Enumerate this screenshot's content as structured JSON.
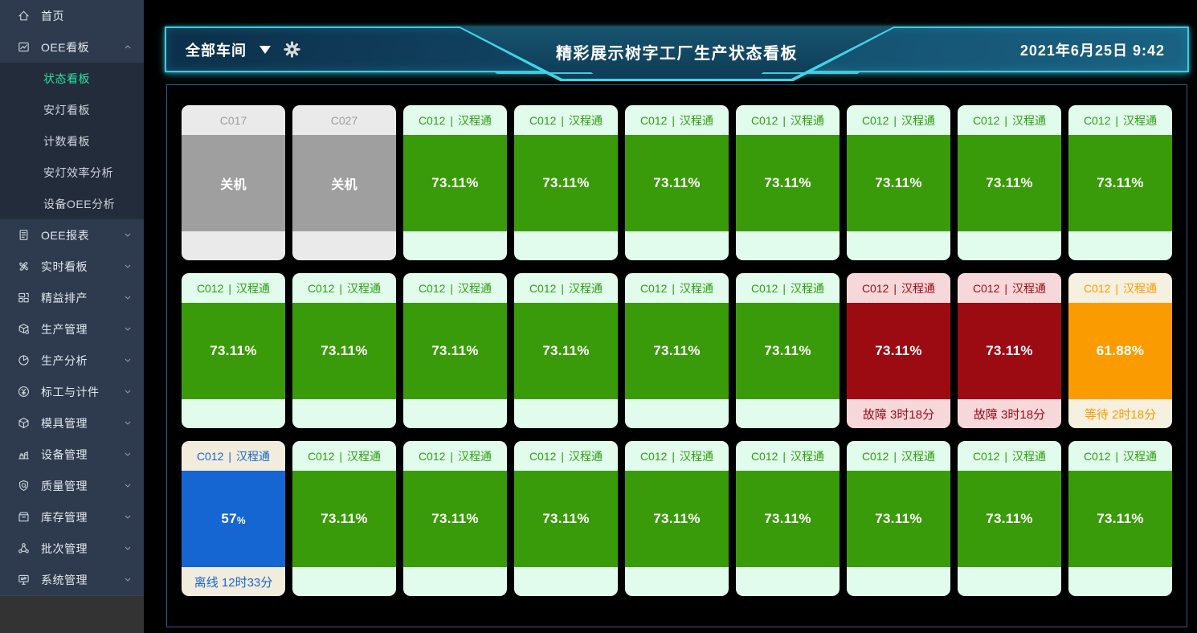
{
  "colors": {
    "accent_cyan": "#3fc9de",
    "sidebar_bg": "#2e3a4d",
    "submenu_bg": "#222c3b",
    "active_menu_green": "#2ee0a2",
    "state_run": "#3a9b0a",
    "state_fault": "#9c0a12",
    "state_wait": "#fb9b02",
    "state_offline": "#1566d2",
    "state_off": "#9f9f9f"
  },
  "sidebar": {
    "items": [
      {
        "label": "首页",
        "icon": "home-icon",
        "chevron": "none"
      },
      {
        "label": "OEE看板",
        "icon": "kanban-icon",
        "chevron": "up",
        "children": [
          {
            "label": "状态看板",
            "active": true
          },
          {
            "label": "安灯看板",
            "active": false
          },
          {
            "label": "计数看板",
            "active": false
          },
          {
            "label": "安灯效率分析",
            "active": false
          },
          {
            "label": "设备OEE分析",
            "active": false
          }
        ]
      },
      {
        "label": "OEE报表",
        "icon": "report-icon",
        "chevron": "down"
      },
      {
        "label": "实时看板",
        "icon": "fan-icon",
        "chevron": "down"
      },
      {
        "label": "精益排产",
        "icon": "schedule-icon",
        "chevron": "down"
      },
      {
        "label": "生产管理",
        "icon": "production-icon",
        "chevron": "down"
      },
      {
        "label": "生产分析",
        "icon": "pie-icon",
        "chevron": "down"
      },
      {
        "label": "标工与计件",
        "icon": "yen-icon",
        "chevron": "down"
      },
      {
        "label": "模具管理",
        "icon": "mold-icon",
        "chevron": "down"
      },
      {
        "label": "设备管理",
        "icon": "equipment-icon",
        "chevron": "down"
      },
      {
        "label": "质量管理",
        "icon": "quality-icon",
        "chevron": "down"
      },
      {
        "label": "库存管理",
        "icon": "inventory-icon",
        "chevron": "down"
      },
      {
        "label": "批次管理",
        "icon": "batch-icon",
        "chevron": "down"
      },
      {
        "label": "系统管理",
        "icon": "system-icon",
        "chevron": "down"
      }
    ]
  },
  "header": {
    "workshop_selector": {
      "label": "全部车间"
    },
    "title": "精彩展示树字工厂生产状态看板",
    "datetime": "2021年6月25日 9:42"
  },
  "board": {
    "divider": "|",
    "cards": [
      {
        "machine": "C017",
        "product": "",
        "state": "off",
        "body": "关机",
        "suffix": "",
        "footer": ""
      },
      {
        "machine": "C027",
        "product": "",
        "state": "off",
        "body": "关机",
        "suffix": "",
        "footer": ""
      },
      {
        "machine": "C012",
        "product": "汉程通",
        "state": "run",
        "body": "73.11%",
        "suffix": "",
        "footer": ""
      },
      {
        "machine": "C012",
        "product": "汉程通",
        "state": "run",
        "body": "73.11%",
        "suffix": "",
        "footer": ""
      },
      {
        "machine": "C012",
        "product": "汉程通",
        "state": "run",
        "body": "73.11%",
        "suffix": "",
        "footer": ""
      },
      {
        "machine": "C012",
        "product": "汉程通",
        "state": "run",
        "body": "73.11%",
        "suffix": "",
        "footer": ""
      },
      {
        "machine": "C012",
        "product": "汉程通",
        "state": "run",
        "body": "73.11%",
        "suffix": "",
        "footer": ""
      },
      {
        "machine": "C012",
        "product": "汉程通",
        "state": "run",
        "body": "73.11%",
        "suffix": "",
        "footer": ""
      },
      {
        "machine": "C012",
        "product": "汉程通",
        "state": "run",
        "body": "73.11%",
        "suffix": "",
        "footer": ""
      },
      {
        "machine": "C012",
        "product": "汉程通",
        "state": "run",
        "body": "73.11%",
        "suffix": "",
        "footer": ""
      },
      {
        "machine": "C012",
        "product": "汉程通",
        "state": "run",
        "body": "73.11%",
        "suffix": "",
        "footer": ""
      },
      {
        "machine": "C012",
        "product": "汉程通",
        "state": "run",
        "body": "73.11%",
        "suffix": "",
        "footer": ""
      },
      {
        "machine": "C012",
        "product": "汉程通",
        "state": "run",
        "body": "73.11%",
        "suffix": "",
        "footer": ""
      },
      {
        "machine": "C012",
        "product": "汉程通",
        "state": "run",
        "body": "73.11%",
        "suffix": "",
        "footer": ""
      },
      {
        "machine": "C012",
        "product": "汉程通",
        "state": "run",
        "body": "73.11%",
        "suffix": "",
        "footer": ""
      },
      {
        "machine": "C012",
        "product": "汉程通",
        "state": "fault",
        "body": "73.11%",
        "suffix": "",
        "footer": "故障 3时18分"
      },
      {
        "machine": "C012",
        "product": "汉程通",
        "state": "fault",
        "body": "73.11%",
        "suffix": "",
        "footer": "故障 3时18分"
      },
      {
        "machine": "C012",
        "product": "汉程通",
        "state": "wait",
        "body": "61.88%",
        "suffix": "",
        "footer": "等待 2时18分"
      },
      {
        "machine": "C012",
        "product": "汉程通",
        "state": "offline",
        "body": "57",
        "suffix": "%",
        "footer": "离线 12时33分"
      },
      {
        "machine": "C012",
        "product": "汉程通",
        "state": "run",
        "body": "73.11%",
        "suffix": "",
        "footer": ""
      },
      {
        "machine": "C012",
        "product": "汉程通",
        "state": "run",
        "body": "73.11%",
        "suffix": "",
        "footer": ""
      },
      {
        "machine": "C012",
        "product": "汉程通",
        "state": "run",
        "body": "73.11%",
        "suffix": "",
        "footer": ""
      },
      {
        "machine": "C012",
        "product": "汉程通",
        "state": "run",
        "body": "73.11%",
        "suffix": "",
        "footer": ""
      },
      {
        "machine": "C012",
        "product": "汉程通",
        "state": "run",
        "body": "73.11%",
        "suffix": "",
        "footer": ""
      },
      {
        "machine": "C012",
        "product": "汉程通",
        "state": "run",
        "body": "73.11%",
        "suffix": "",
        "footer": ""
      },
      {
        "machine": "C012",
        "product": "汉程通",
        "state": "run",
        "body": "73.11%",
        "suffix": "",
        "footer": ""
      },
      {
        "machine": "C012",
        "product": "汉程通",
        "state": "run",
        "body": "73.11%",
        "suffix": "",
        "footer": ""
      }
    ]
  }
}
